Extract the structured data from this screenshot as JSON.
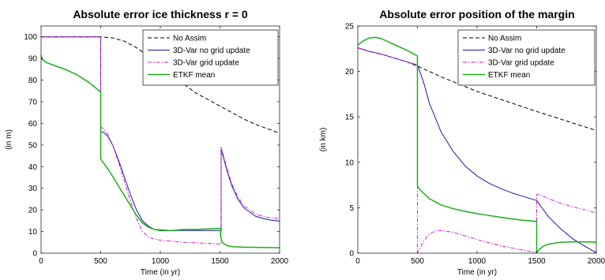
{
  "chart_data": [
    {
      "type": "line",
      "title": "Absolute error ice thickness r = 0",
      "xlabel": "Time (in yr)",
      "ylabel": "(in m)",
      "xlim": [
        0,
        2000
      ],
      "ylim": [
        0,
        105
      ],
      "xticks": [
        0,
        500,
        1000,
        1500,
        2000
      ],
      "yticks": [
        0,
        10,
        20,
        30,
        40,
        50,
        60,
        70,
        80,
        90,
        100
      ],
      "legend_position": "top-right",
      "series": [
        {
          "name": "No Assim",
          "color": "#000000",
          "dash": "5,3",
          "width": 1,
          "x": [
            0,
            500,
            600,
            700,
            800,
            900,
            1000,
            1100,
            1200,
            1300,
            1400,
            1500,
            1600,
            1700,
            1800,
            1900,
            2000
          ],
          "y": [
            100,
            100,
            99.5,
            98,
            95,
            91,
            86.5,
            82,
            78,
            74,
            71,
            68,
            65,
            62,
            59.5,
            57.5,
            55.5
          ]
        },
        {
          "name": "3D-Var no grid update",
          "color": "#1a1a9c",
          "dash": "",
          "width": 1,
          "x": [
            0,
            500,
            500,
            520,
            560,
            600,
            650,
            700,
            750,
            800,
            850,
            900,
            950,
            1000,
            1100,
            1200,
            1300,
            1400,
            1500,
            1510,
            1510,
            1520,
            1560,
            1600,
            1650,
            1700,
            1800,
            1900,
            2000
          ],
          "y": [
            100,
            100,
            56,
            56,
            54,
            50,
            43,
            35,
            27,
            20,
            15,
            12.5,
            11,
            10.8,
            10.5,
            10.5,
            10.5,
            10.5,
            10.5,
            10.5,
            48,
            46,
            38,
            31,
            25,
            21,
            17,
            15.5,
            14.8
          ]
        },
        {
          "name": "3D-Var grid update",
          "color": "#d020d0",
          "dash": "5,2,1.5,2",
          "width": 1,
          "x": [
            0,
            500,
            500,
            520,
            560,
            600,
            650,
            700,
            750,
            800,
            850,
            900,
            950,
            1000,
            1100,
            1200,
            1300,
            1400,
            1500,
            1510,
            1510,
            1520,
            1560,
            1600,
            1650,
            1700,
            1800,
            1900,
            2000
          ],
          "y": [
            100,
            100,
            58.5,
            57.5,
            55,
            50,
            42,
            33,
            24,
            16,
            10,
            7.5,
            6.5,
            6,
            5.5,
            5,
            4.8,
            4.5,
            4.2,
            4.2,
            49,
            47,
            39,
            32,
            26,
            22,
            18,
            16.5,
            16
          ]
        },
        {
          "name": "ETKF mean",
          "color": "#18b018",
          "dash": "",
          "width": 1.5,
          "x": [
            0,
            10,
            50,
            100,
            200,
            300,
            400,
            500,
            500,
            520,
            560,
            600,
            650,
            700,
            750,
            800,
            850,
            900,
            950,
            1000,
            1100,
            1200,
            1300,
            1400,
            1500,
            1505,
            1505,
            1515,
            1530,
            1560,
            1600,
            1700,
            1800,
            1900,
            2000
          ],
          "y": [
            91.5,
            89.5,
            88,
            87,
            85,
            82.5,
            79,
            74.5,
            43.5,
            42,
            39,
            35.5,
            31,
            26.5,
            22,
            17.5,
            14,
            12,
            11,
            10.5,
            10.5,
            11,
            11,
            11.2,
            11.5,
            11.5,
            8,
            5.5,
            4.5,
            3.5,
            3,
            2.8,
            2.7,
            2.6,
            2.5
          ]
        }
      ]
    },
    {
      "type": "line",
      "title": "Absolute error position of the margin",
      "xlabel": "Time (in yr)",
      "ylabel": "(in km)",
      "xlim": [
        0,
        2000
      ],
      "ylim": [
        0,
        25
      ],
      "xticks": [
        0,
        500,
        1000,
        1500,
        2000
      ],
      "yticks": [
        0,
        5,
        10,
        15,
        20,
        25
      ],
      "legend_position": "top-right",
      "series": [
        {
          "name": "No Assim",
          "color": "#000000",
          "dash": "5,3",
          "width": 1,
          "x": [
            0,
            100,
            200,
            300,
            400,
            500,
            700,
            1000,
            1500,
            2000
          ],
          "y": [
            22.6,
            22.2,
            21.9,
            21.5,
            21.1,
            20.6,
            19.4,
            17.8,
            15.6,
            13.5
          ]
        },
        {
          "name": "3D-Var no grid update",
          "color": "#1a1a9c",
          "dash": "",
          "width": 1,
          "x": [
            0,
            100,
            200,
            300,
            400,
            500,
            550,
            600,
            700,
            800,
            900,
            1000,
            1100,
            1200,
            1300,
            1400,
            1500,
            1550,
            1600,
            1700,
            1800,
            1900,
            2000
          ],
          "y": [
            22.6,
            22.2,
            21.9,
            21.5,
            21.1,
            20.7,
            18.9,
            16.5,
            13.3,
            11.2,
            9.6,
            8.5,
            7.7,
            7.1,
            6.6,
            6.2,
            5.8,
            4.9,
            4.0,
            2.7,
            1.6,
            0.8,
            0.05
          ]
        },
        {
          "name": "3D-Var grid update",
          "color": "#d020d0",
          "dash": "5,2,1.5,2",
          "width": 1,
          "x": [
            0,
            100,
            200,
            300,
            400,
            500,
            500,
            520,
            550,
            600,
            650,
            700,
            800,
            900,
            1000,
            1100,
            1200,
            1300,
            1400,
            1500,
            1500,
            1510,
            1550,
            1600,
            1700,
            1800,
            1900,
            2000
          ],
          "y": [
            22.6,
            22.2,
            21.9,
            21.5,
            21.1,
            20.7,
            0.05,
            0.5,
            1.3,
            2.1,
            2.45,
            2.5,
            2.3,
            1.9,
            1.5,
            1.15,
            0.8,
            0.55,
            0.3,
            0.05,
            6.4,
            6.5,
            6.3,
            6.0,
            5.5,
            5.1,
            4.8,
            4.4
          ]
        },
        {
          "name": "ETKF mean",
          "color": "#18b018",
          "dash": "",
          "width": 1.5,
          "x": [
            0,
            50,
            100,
            150,
            200,
            300,
            400,
            500,
            500,
            520,
            560,
            600,
            700,
            800,
            900,
            1000,
            1100,
            1200,
            1300,
            1400,
            1500,
            1500,
            1520,
            1560,
            1600,
            1700,
            1800,
            1900,
            2000
          ],
          "y": [
            22.9,
            23.4,
            23.7,
            23.75,
            23.6,
            23.0,
            22.4,
            21.7,
            7.4,
            7.0,
            6.5,
            6.0,
            5.3,
            4.9,
            4.6,
            4.35,
            4.15,
            3.95,
            3.75,
            3.6,
            3.5,
            0.05,
            0.4,
            0.8,
            1.0,
            1.2,
            1.25,
            1.25,
            1.2
          ]
        }
      ]
    }
  ]
}
